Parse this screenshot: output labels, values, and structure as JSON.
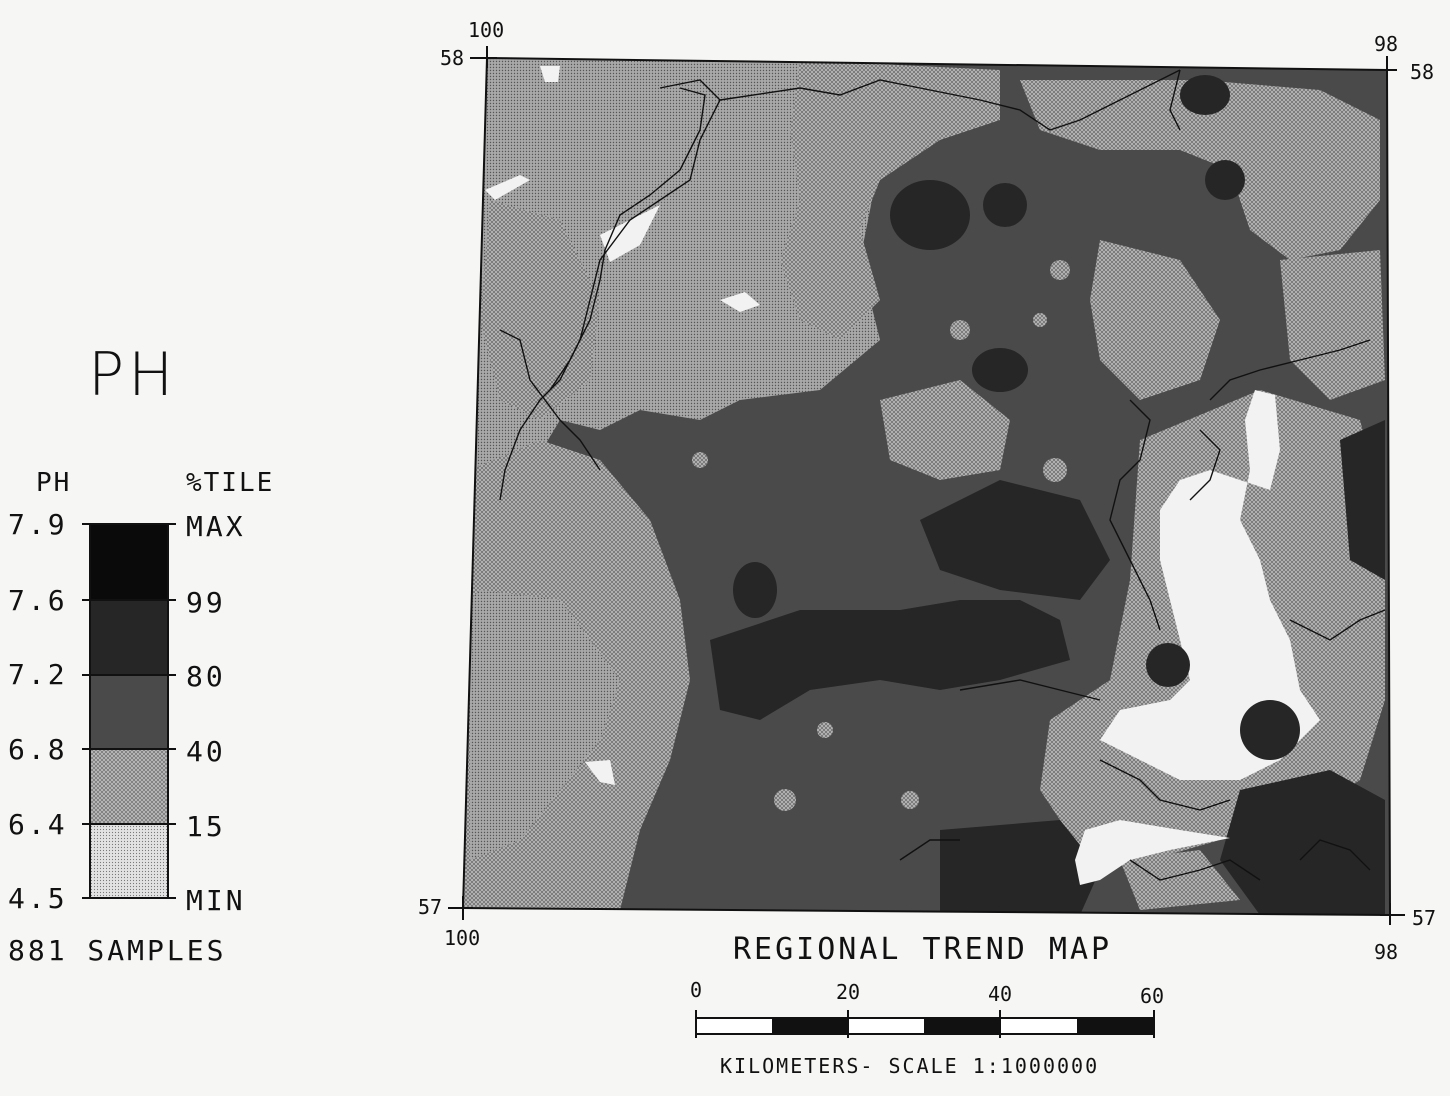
{
  "title": "PH",
  "legend": {
    "left_header": "PH",
    "right_header": "%TILE",
    "ph_values": [
      "7.9",
      "7.6",
      "7.2",
      "6.8",
      "6.4",
      "4.5"
    ],
    "percentiles": [
      "MAX",
      "99",
      "80",
      "40",
      "15",
      "MIN"
    ],
    "class_colors": [
      "#0a0a0a",
      "#262626",
      "#4a4a4a",
      "#8d8d8d",
      "#c9c9c9"
    ],
    "samples_text": "881 SAMPLES"
  },
  "map": {
    "title": "REGIONAL TREND MAP",
    "corner_labels": {
      "top_left_lon": "100",
      "top_right_lon": "98",
      "bottom_left_lon": "100",
      "bottom_right_lon": "98",
      "top_left_lat": "58",
      "top_right_lat": "58",
      "bottom_left_lat": "57",
      "bottom_right_lat": "57"
    }
  },
  "scale_bar": {
    "ticks": [
      "0",
      "20",
      "40",
      "60"
    ],
    "caption": "KILOMETERS- SCALE 1:1000000"
  }
}
